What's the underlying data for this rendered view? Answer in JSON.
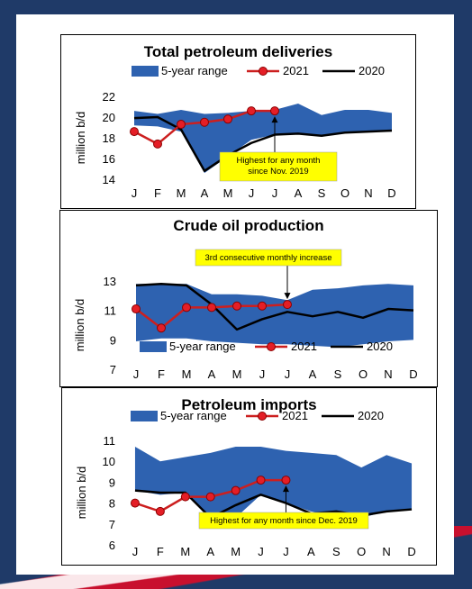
{
  "colors": {
    "range": "#2e62b0",
    "y2021": "#cc1f1f",
    "y2021_marker": "#e41e26",
    "y2020": "#000000",
    "callout_bg": "#ffff00"
  },
  "chart_data": [
    {
      "type": "line",
      "title": "Total petroleum deliveries",
      "ylabel": "million b/d",
      "ylim": [
        14,
        22
      ],
      "yticks": [
        "14",
        "16",
        "18",
        "20",
        "22"
      ],
      "categories": [
        "J",
        "F",
        "M",
        "A",
        "M",
        "J",
        "J",
        "A",
        "S",
        "O",
        "N",
        "D"
      ],
      "legend_placement": "top",
      "legend": [
        "5-year range",
        "2021",
        "2020"
      ],
      "range_low": [
        19.2,
        19.1,
        18.6,
        14.6,
        16.2,
        17.8,
        18.3,
        18.4,
        18.2,
        18.5,
        18.6,
        18.6
      ],
      "range_high": [
        20.6,
        20.3,
        20.7,
        20.3,
        20.4,
        20.6,
        20.7,
        21.3,
        20.2,
        20.7,
        20.7,
        20.4
      ],
      "series": [
        {
          "name": "2021",
          "values": [
            18.6,
            17.4,
            19.3,
            19.5,
            19.8,
            20.6,
            20.6,
            null,
            null,
            null,
            null,
            null
          ]
        },
        {
          "name": "2020",
          "values": [
            19.9,
            20.0,
            18.8,
            14.8,
            16.3,
            17.5,
            18.3,
            18.4,
            18.2,
            18.5,
            18.6,
            18.7
          ]
        }
      ],
      "annotation": {
        "text": [
          "Highest for any month",
          "since Nov. 2019"
        ],
        "month_index": 6
      }
    },
    {
      "type": "line",
      "title": "Crude oil production",
      "ylabel": "million b/d",
      "ylim": [
        7,
        13
      ],
      "yticks": [
        "7",
        "9",
        "11",
        "13"
      ],
      "categories": [
        "J",
        "F",
        "M",
        "A",
        "M",
        "J",
        "J",
        "A",
        "S",
        "O",
        "N",
        "D"
      ],
      "legend_placement": "bottom",
      "legend": [
        "5-year range",
        "2021",
        "2020"
      ],
      "range_low": [
        8.9,
        9.1,
        9.1,
        8.9,
        8.8,
        8.7,
        8.7,
        8.6,
        8.5,
        8.7,
        8.9,
        9.0
      ],
      "range_high": [
        12.8,
        12.8,
        12.8,
        12.1,
        12.1,
        12.0,
        11.7,
        12.4,
        12.5,
        12.7,
        12.8,
        12.7
      ],
      "series": [
        {
          "name": "2021",
          "values": [
            11.1,
            9.8,
            11.2,
            11.2,
            11.3,
            11.3,
            11.4,
            null,
            null,
            null,
            null,
            null
          ]
        },
        {
          "name": "2020",
          "values": [
            12.7,
            12.8,
            12.7,
            11.4,
            9.7,
            10.4,
            10.9,
            10.6,
            10.9,
            10.5,
            11.1,
            11.0
          ]
        }
      ],
      "annotation": {
        "text": [
          "3rd consecutive monthly increase"
        ],
        "month_index": 6
      }
    },
    {
      "type": "line",
      "title": "Petroleum imports",
      "ylabel": "million b/d",
      "ylim": [
        6,
        11
      ],
      "yticks": [
        "6",
        "7",
        "8",
        "9",
        "10",
        "11"
      ],
      "categories": [
        "J",
        "F",
        "M",
        "A",
        "M",
        "J",
        "J",
        "A",
        "S",
        "O",
        "N",
        "D"
      ],
      "legend_placement": "top",
      "legend": [
        "5-year range",
        "2021",
        "2020"
      ],
      "range_low": [
        8.6,
        8.4,
        8.5,
        7.2,
        7.3,
        8.4,
        8.0,
        7.6,
        7.4,
        7.3,
        7.6,
        7.7
      ],
      "range_high": [
        10.7,
        10.0,
        10.2,
        10.4,
        10.7,
        10.7,
        10.5,
        10.4,
        10.3,
        9.7,
        10.3,
        9.9
      ],
      "series": [
        {
          "name": "2021",
          "values": [
            8.0,
            7.6,
            8.3,
            8.3,
            8.6,
            9.1,
            9.1,
            null,
            null,
            null,
            null,
            null
          ]
        },
        {
          "name": "2020",
          "values": [
            8.6,
            8.5,
            8.5,
            7.3,
            7.9,
            8.4,
            8.0,
            7.5,
            7.6,
            7.4,
            7.6,
            7.7
          ]
        }
      ],
      "annotation": {
        "text": [
          "Highest for any month since Dec. 2019"
        ],
        "month_index": 6
      }
    }
  ]
}
